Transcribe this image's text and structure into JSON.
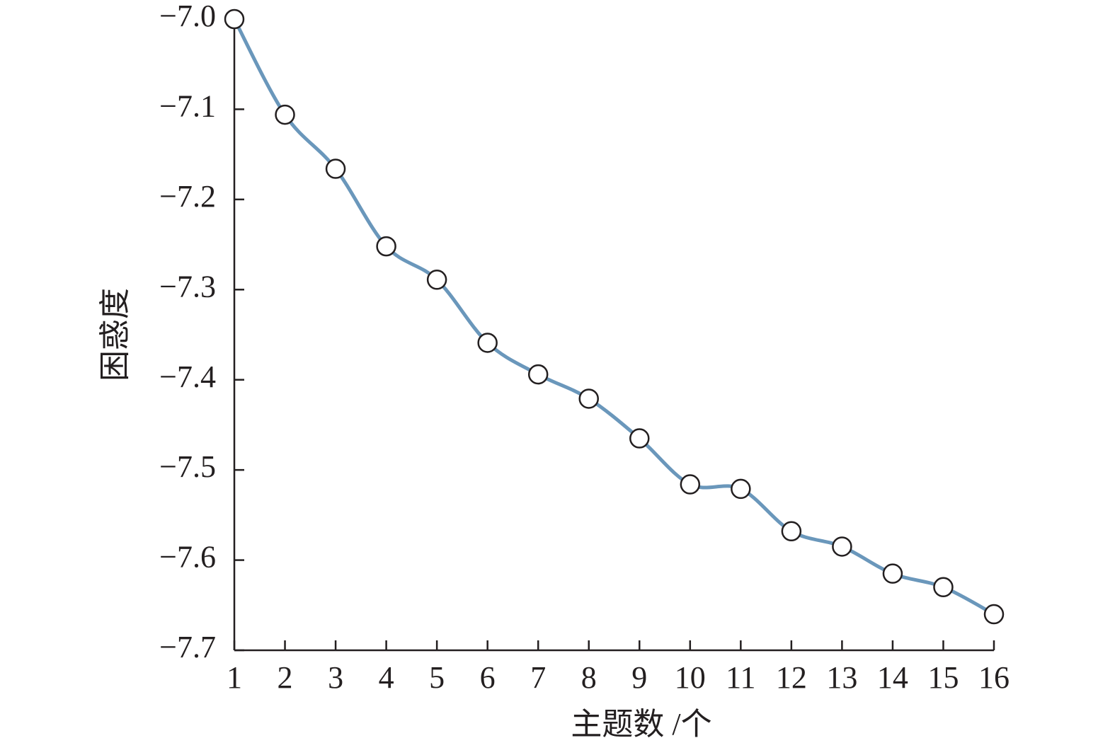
{
  "chart_data": {
    "type": "line",
    "x_label": "主题数 /个",
    "y_label": "困惑度",
    "x": [
      1,
      2,
      3,
      4,
      5,
      6,
      7,
      8,
      9,
      10,
      11,
      12,
      13,
      14,
      15,
      16
    ],
    "values": [
      -7.0,
      -7.106,
      -7.166,
      -7.252,
      -7.289,
      -7.359,
      -7.394,
      -7.421,
      -7.465,
      -7.516,
      -7.521,
      -7.568,
      -7.585,
      -7.615,
      -7.63,
      -7.66
    ],
    "color": "#6a97bb",
    "xlim": [
      1,
      16
    ],
    "xticks": [
      1,
      2,
      3,
      4,
      5,
      6,
      7,
      8,
      9,
      10,
      11,
      12,
      13,
      14,
      15,
      16
    ],
    "ylim": [
      -7.7,
      -7.0
    ],
    "yticks": [
      {
        "value": -7.0,
        "label": "−7.0"
      },
      {
        "value": -7.1,
        "label": "−7.1"
      },
      {
        "value": -7.2,
        "label": "−7.2"
      },
      {
        "value": -7.3,
        "label": "−7.3"
      },
      {
        "value": -7.4,
        "label": "−7.4"
      },
      {
        "value": -7.5,
        "label": "−7.5"
      },
      {
        "value": -7.6,
        "label": "−7.6"
      },
      {
        "value": -7.7,
        "label": "−7.7"
      }
    ],
    "grid": false
  }
}
